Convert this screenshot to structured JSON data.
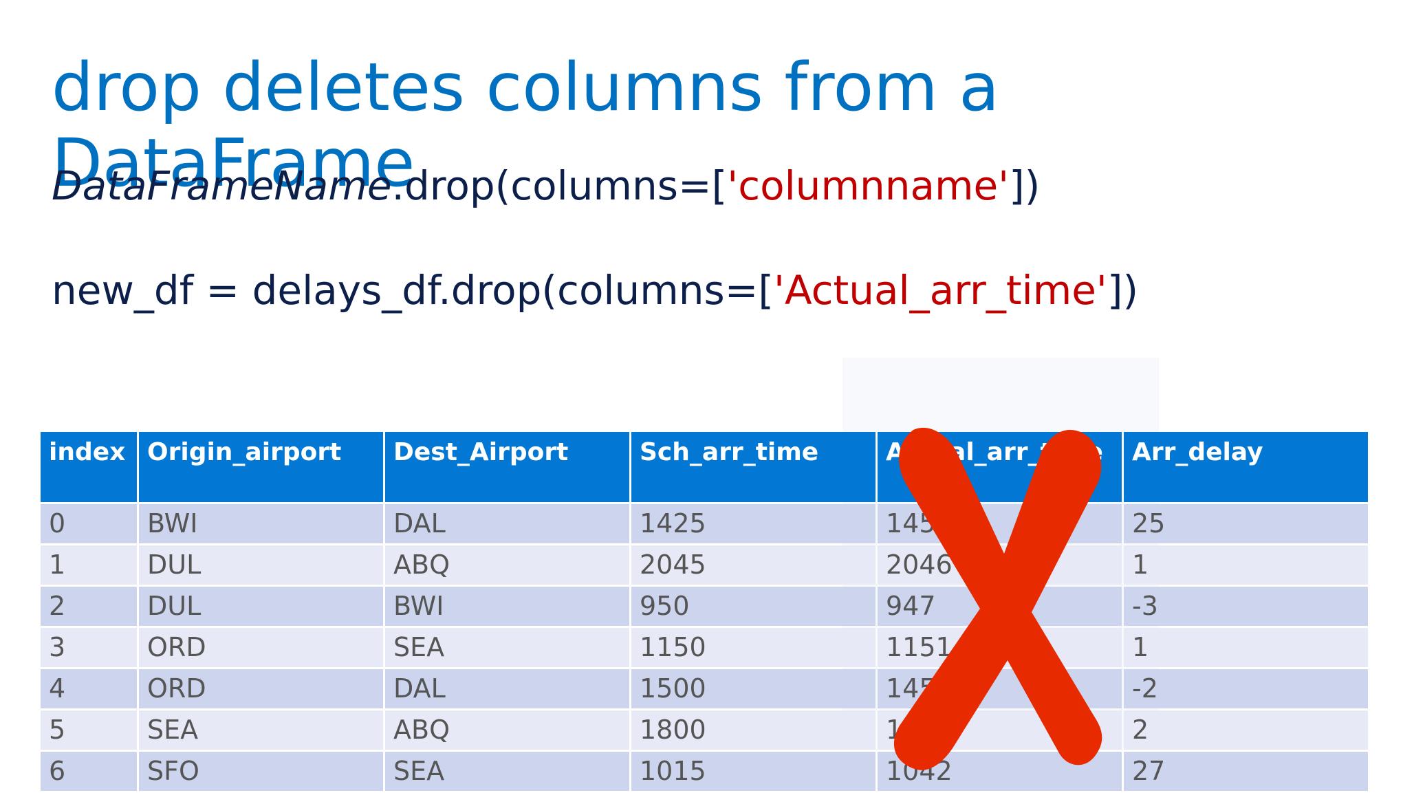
{
  "title": "drop deletes columns from a DataFrame",
  "code_line_1": {
    "object": "DataFrameName",
    "method": ".drop(columns=[",
    "string": "'columnname'",
    "close": "])"
  },
  "code_line_2": {
    "prefix": "new_df = delays_df.drop(columns=[",
    "string": "'Actual_arr_time'",
    "close": "])"
  },
  "table": {
    "headers": [
      "index",
      "Origin_airport",
      "Dest_Airport",
      "Sch_arr_time",
      "Actual_arr_time",
      "Arr_delay"
    ],
    "rows": [
      [
        "0",
        "BWI",
        "DAL",
        "1425",
        "1450",
        "25"
      ],
      [
        "1",
        "DUL",
        "ABQ",
        "2045",
        "2046",
        "1"
      ],
      [
        "2",
        "DUL",
        "BWI",
        "950",
        "947",
        "-3"
      ],
      [
        "3",
        "ORD",
        "SEA",
        "1150",
        "1151",
        "1"
      ],
      [
        "4",
        "ORD",
        "DAL",
        "1500",
        "1458",
        "-2"
      ],
      [
        "5",
        "SEA",
        "ABQ",
        "1800",
        "1802",
        "2"
      ],
      [
        "6",
        "SFO",
        "SEA",
        "1015",
        "1042",
        "27"
      ]
    ]
  },
  "colors": {
    "title": "#0070c0",
    "header_bg": "#0277d4",
    "row_odd": "#cdd5ee",
    "row_even": "#e7eaf6",
    "string_literal": "#c00000",
    "cross": "#e82a00"
  },
  "overlay_icon": "red-x-cross-icon"
}
